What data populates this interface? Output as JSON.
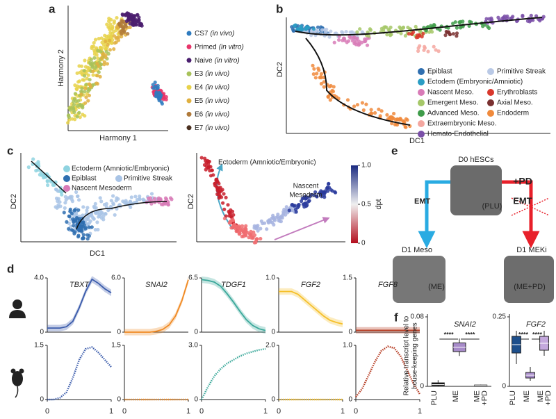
{
  "panel_a": {
    "label": "a",
    "y_label": "Harmony 2",
    "x_label": "Harmony 1",
    "legend": [
      {
        "name": "CS7",
        "note": "(in vivo)",
        "color": "#2e7bbf"
      },
      {
        "name": "Primed",
        "note": "(in vitro)",
        "color": "#e8356a"
      },
      {
        "name": "Naive",
        "note": "(in vitro)",
        "color": "#4b1f6f"
      },
      {
        "name": "E3",
        "note": "(in vivo)",
        "color": "#a8c25a"
      },
      {
        "name": "E4",
        "note": "(in vivo)",
        "color": "#e8d24a"
      },
      {
        "name": "E5",
        "note": "(in vivo)",
        "color": "#e0b040"
      },
      {
        "name": "E6",
        "note": "(in vivo)",
        "color": "#b07a3a"
      },
      {
        "name": "E7",
        "note": "(in vivo)",
        "color": "#4a3020"
      }
    ]
  },
  "panel_b": {
    "label": "b",
    "y_label": "DC2",
    "x_label": "DC1",
    "legend": [
      {
        "name": "Epiblast",
        "color": "#2f6fb0"
      },
      {
        "name": "Primitive Streak",
        "color": "#b9c9e6"
      },
      {
        "name": "Ectodem (Embryonic/Amniotic)",
        "color": "#2a9dc4"
      },
      {
        "name": "Nascent Meso.",
        "color": "#d87bb7"
      },
      {
        "name": "Erythroblasts",
        "color": "#d9382c"
      },
      {
        "name": "Emergent Meso.",
        "color": "#a6c869"
      },
      {
        "name": "Axial Meso.",
        "color": "#7a3030"
      },
      {
        "name": "Advanced Meso.",
        "color": "#3f9c4a"
      },
      {
        "name": "Endoderm",
        "color": "#f08a3c"
      },
      {
        "name": "Extraembryonic Meso.",
        "color": "#f4a7a0"
      },
      {
        "name": "Hemato-Endothelial",
        "color": "#7a4fa8"
      }
    ]
  },
  "panel_c": {
    "label": "c",
    "y_label": "DC2",
    "x_label": "DC1",
    "legend": [
      {
        "name": "Ectoderm (Amniotic/Embryonic)",
        "color": "#8fd3e0"
      },
      {
        "name": "Epiblast",
        "color": "#2f6fb0"
      },
      {
        "name": "Primitive Streak",
        "color": "#a9c4e6"
      },
      {
        "name": "Nascent Mesoderm",
        "color": "#d87bb7"
      }
    ],
    "right": {
      "y_label": "DC2",
      "start_label": "Ectoderm (Amniotic/Embryonic)",
      "end_label_1": "Nascent",
      "end_label_2": "Mesoderm",
      "colorbar": {
        "label": "dpt",
        "ylim": [
          0,
          1
        ],
        "yticks": [
          0,
          0.5,
          {
            "value": 1,
            "label": "1.0"
          }
        ]
      }
    }
  },
  "panel_d": {
    "label": "d",
    "xlim": [
      0,
      1
    ],
    "xticks": [
      0,
      1
    ],
    "x": [
      0,
      0.1,
      0.2,
      0.3,
      0.4,
      0.5,
      0.6,
      0.7,
      0.8,
      0.9,
      1
    ],
    "genes": [
      {
        "name": "TBXT",
        "color": "#3a5bab",
        "human": {
          "ylim": [
            0,
            4
          ],
          "yticks": [
            0,
            {
              "value": 4,
              "label": "4.0"
            }
          ],
          "values": [
            0.3,
            0.3,
            0.3,
            0.4,
            0.8,
            1.8,
            3.0,
            3.9,
            3.6,
            3.2,
            2.9
          ]
        },
        "mouse": {
          "ylim": [
            0,
            1.5
          ],
          "yticks": [
            0,
            1.5
          ],
          "values": [
            0,
            0,
            0.05,
            0.2,
            0.6,
            1.1,
            1.4,
            1.45,
            1.3,
            1.1,
            0.9
          ]
        }
      },
      {
        "name": "SNAI2",
        "color": "#f08a24",
        "human": {
          "ylim": [
            0,
            6
          ],
          "yticks": [
            0,
            {
              "value": 6,
              "label": "6.0"
            }
          ],
          "values": [
            0,
            0,
            0,
            0,
            0,
            0.1,
            0.3,
            0.8,
            1.8,
            3.5,
            5.8
          ]
        },
        "mouse": {
          "ylim": [
            0,
            1.5
          ],
          "yticks": [
            0,
            1.5
          ],
          "values": [
            0,
            0,
            0,
            0,
            0,
            0,
            0,
            0,
            0,
            0,
            0
          ]
        }
      },
      {
        "name": "TDGF1",
        "color": "#3aa89a",
        "human": {
          "ylim": [
            0,
            6.5
          ],
          "yticks": [
            0,
            6.5
          ],
          "values": [
            6.3,
            6.2,
            6.0,
            5.5,
            4.6,
            3.6,
            2.5,
            1.5,
            0.8,
            0.4,
            0.2
          ]
        },
        "mouse": {
          "ylim": [
            0,
            3
          ],
          "yticks": [
            0,
            {
              "value": 3,
              "label": "3.0"
            }
          ],
          "values": [
            0,
            0.7,
            1.3,
            1.7,
            2.0,
            2.2,
            2.4,
            2.55,
            2.65,
            2.75,
            2.8
          ]
        }
      },
      {
        "name": "FGF2",
        "color": "#f5c02a",
        "human": {
          "ylim": [
            0,
            1
          ],
          "yticks": [
            0,
            {
              "value": 1,
              "label": "1.0"
            }
          ],
          "values": [
            0.75,
            0.75,
            0.75,
            0.7,
            0.6,
            0.5,
            0.4,
            0.3,
            0.22,
            0.18,
            0.15
          ]
        },
        "mouse": {
          "ylim": [
            0,
            2
          ],
          "yticks": [
            0,
            {
              "value": 2,
              "label": "2.0"
            }
          ],
          "values": [
            0,
            0,
            0,
            0,
            0,
            0,
            0,
            0,
            0,
            0,
            0
          ]
        }
      },
      {
        "name": "FGF8",
        "color": "#b5381e",
        "human": {
          "ylim": [
            0,
            1.5
          ],
          "yticks": [
            0,
            1.5
          ],
          "values": [
            0.05,
            0.05,
            0.05,
            0.05,
            0.05,
            0.05,
            0.05,
            0.05,
            0.05,
            0.05,
            0.05
          ]
        },
        "mouse": {
          "ylim": [
            0,
            1
          ],
          "yticks": [
            0,
            {
              "value": 1,
              "label": "1.0"
            }
          ],
          "values": [
            0.05,
            0.2,
            0.45,
            0.7,
            0.9,
            0.98,
            0.95,
            0.8,
            0.55,
            0.3,
            0.1
          ]
        }
      }
    ]
  },
  "panel_e": {
    "label": "e",
    "d0": "D0 hESCs",
    "plu": "(PLU)",
    "emt_left": "EMT",
    "emt_right": "EMT",
    "pd": "+PD",
    "meso": "D1 Meso",
    "meki": "D1 MEKi",
    "me": "(ME)",
    "mepd": "(ME+PD)"
  },
  "panel_f": {
    "label": "f",
    "y_label_1": "Relative transcript level to",
    "y_label_2": "house-keeping genes",
    "categories": [
      [
        "PLU"
      ],
      [
        "ME"
      ],
      [
        "ME",
        "+PD"
      ]
    ],
    "category_colors": [
      "#111111",
      "#29abe2",
      "#e8202a"
    ],
    "plots": [
      {
        "gene": "SNAI2",
        "ylim": [
          0,
          0.08
        ],
        "yticks": [
          0,
          0.08
        ],
        "significance": [
          "****",
          "****"
        ],
        "boxes": [
          {
            "color": "#111111",
            "min": 0,
            "q1": 0.001,
            "median": 0.002,
            "q3": 0.004,
            "max": 0.007
          },
          {
            "color": "#a78bc9",
            "min": 0.035,
            "q1": 0.04,
            "median": 0.045,
            "q3": 0.05,
            "max": 0.055
          },
          {
            "color": "#111111",
            "min": 0,
            "q1": 0.0005,
            "median": 0.001,
            "q3": 0.0015,
            "max": 0.002
          }
        ]
      },
      {
        "gene": "FGF2",
        "ylim": [
          0,
          0.25
        ],
        "yticks": [
          0,
          0.25
        ],
        "significance": [
          "****",
          "****"
        ],
        "boxes": [
          {
            "color": "#1d4f8c",
            "min": 0.08,
            "q1": 0.12,
            "median": 0.15,
            "q3": 0.18,
            "max": 0.2
          },
          {
            "color": "#a78bc9",
            "min": 0.02,
            "q1": 0.03,
            "median": 0.04,
            "q3": 0.05,
            "max": 0.07
          },
          {
            "color": "#c4a8dd",
            "min": 0.11,
            "q1": 0.13,
            "median": 0.155,
            "q3": 0.18,
            "max": 0.2
          }
        ]
      }
    ]
  }
}
